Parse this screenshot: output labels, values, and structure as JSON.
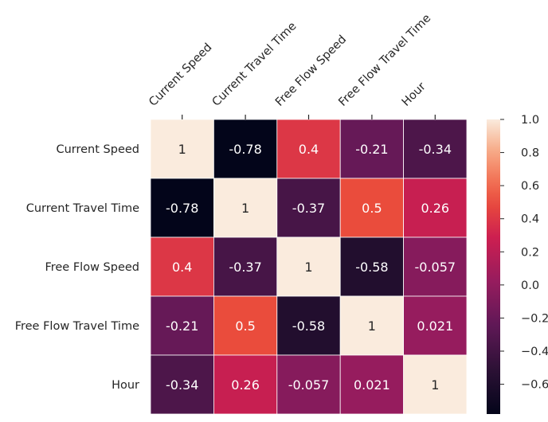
{
  "chart_data": {
    "type": "heatmap",
    "title": "",
    "xlabel": "",
    "ylabel": "",
    "categories": [
      "Current Speed",
      "Current Travel Time",
      "Free Flow Speed",
      "Free Flow Travel Time",
      "Hour"
    ],
    "matrix": [
      [
        1,
        -0.78,
        0.4,
        -0.21,
        -0.34
      ],
      [
        -0.78,
        1,
        -0.37,
        0.5,
        0.26
      ],
      [
        0.4,
        -0.37,
        1,
        -0.58,
        -0.057
      ],
      [
        -0.21,
        0.5,
        -0.58,
        1,
        0.021
      ],
      [
        -0.34,
        0.26,
        -0.057,
        0.021,
        1
      ]
    ],
    "labels": [
      [
        "1",
        "-0.78",
        "0.4",
        "-0.21",
        "-0.34"
      ],
      [
        "-0.78",
        "1",
        "-0.37",
        "0.5",
        "0.26"
      ],
      [
        "0.4",
        "-0.37",
        "1",
        "-0.58",
        "-0.057"
      ],
      [
        "-0.21",
        "0.5",
        "-0.58",
        "1",
        "0.021"
      ],
      [
        "-0.34",
        "0.26",
        "-0.057",
        "0.021",
        "1"
      ]
    ],
    "colorbar": {
      "vmin": -0.78,
      "vmax": 1,
      "ticks": [
        1.0,
        0.8,
        0.6,
        0.4,
        0.2,
        0.0,
        -0.2,
        -0.4,
        -0.6
      ],
      "tick_labels": [
        "1.0",
        "0.8",
        "0.6",
        "0.4",
        "0.2",
        "0.0",
        "−0.2",
        "−0.4",
        "−0.6"
      ],
      "colormap": "rocket"
    },
    "x_tick_position": "top",
    "annotations": true
  }
}
